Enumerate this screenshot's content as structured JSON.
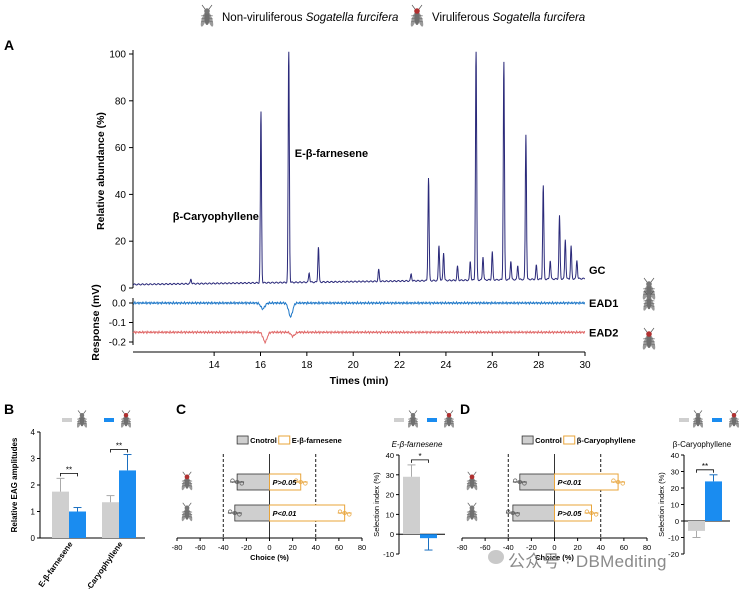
{
  "legend": {
    "nonviruliferous_prefix": "Non-viruliferous ",
    "nonviruliferous_species": "Sogatella furcifera",
    "viruliferous_prefix": "Viruliferous ",
    "viruliferous_species": "Sogatella furcifera"
  },
  "colors": {
    "gc": "#2b2a7a",
    "ead1": "#1f78c8",
    "ead2": "#e06a6a",
    "grey_bar": "#cfcfcf",
    "blue_bar": "#1a8cf0",
    "orange": "#e8a43a",
    "dark": "#555555"
  },
  "chart_data": [
    {
      "panel": "A",
      "type": "line",
      "xlabel": "Times (min)",
      "xticks": [
        14,
        16,
        18,
        20,
        22,
        24,
        26,
        28,
        30
      ],
      "xlim": [
        10.5,
        30
      ],
      "gc": {
        "ylabel": "Relative abundance (%)",
        "yticks": [
          0,
          20,
          40,
          60,
          80,
          100
        ],
        "ylim": [
          0,
          100
        ],
        "trace_label": "GC",
        "peaks": [
          {
            "x": 13.0,
            "y": 2
          },
          {
            "x": 16.02,
            "y": 73,
            "label": "β-Caryophyllene"
          },
          {
            "x": 17.22,
            "y": 100,
            "label": "E-β-farnesene"
          },
          {
            "x": 18.1,
            "y": 4
          },
          {
            "x": 18.5,
            "y": 15
          },
          {
            "x": 21.1,
            "y": 5
          },
          {
            "x": 22.5,
            "y": 3
          },
          {
            "x": 23.25,
            "y": 44
          },
          {
            "x": 23.7,
            "y": 15
          },
          {
            "x": 23.9,
            "y": 12
          },
          {
            "x": 24.5,
            "y": 6
          },
          {
            "x": 25.05,
            "y": 8
          },
          {
            "x": 25.3,
            "y": 99
          },
          {
            "x": 25.6,
            "y": 10
          },
          {
            "x": 26.0,
            "y": 12
          },
          {
            "x": 26.5,
            "y": 93
          },
          {
            "x": 26.8,
            "y": 8
          },
          {
            "x": 27.1,
            "y": 6
          },
          {
            "x": 27.45,
            "y": 62
          },
          {
            "x": 27.9,
            "y": 6
          },
          {
            "x": 28.2,
            "y": 40
          },
          {
            "x": 28.5,
            "y": 8
          },
          {
            "x": 28.9,
            "y": 27
          },
          {
            "x": 29.15,
            "y": 17
          },
          {
            "x": 29.4,
            "y": 14
          },
          {
            "x": 29.65,
            "y": 8
          }
        ]
      },
      "ead": {
        "ylabel": "Response (mV)",
        "yticks": [
          0.0,
          -0.1,
          -0.2
        ],
        "traces": [
          {
            "name": "EAD1",
            "baseline": 0.0,
            "dips": [
              {
                "x": 16.1,
                "y": -0.03
              },
              {
                "x": 17.3,
                "y": -0.07
              }
            ]
          },
          {
            "name": "EAD2",
            "baseline": -0.15,
            "dips": [
              {
                "x": 16.2,
                "y": -0.2
              },
              {
                "x": 17.4,
                "y": -0.17
              }
            ]
          }
        ]
      }
    },
    {
      "panel": "B",
      "type": "bar",
      "ylabel": "Relative EAG amplitudes",
      "ylim": [
        0,
        4
      ],
      "yticks": [
        0,
        1,
        2,
        3,
        4
      ],
      "categories": [
        "E-β-farnesene",
        "β-Caryophyllene"
      ],
      "series": [
        {
          "values": [
            1.75,
            1.35
          ],
          "errors": [
            0.5,
            0.25
          ]
        },
        {
          "values": [
            1.0,
            2.55
          ],
          "errors": [
            0.15,
            0.6
          ]
        }
      ],
      "significance": [
        "**",
        "**"
      ]
    },
    {
      "panel": "C",
      "type": "bar",
      "legend": [
        "Cnotrol",
        "E-β-farnesene"
      ],
      "xlabel": "Choice (%)",
      "xticks": [
        -80,
        -60,
        -40,
        -20,
        0,
        20,
        40,
        60,
        80
      ],
      "rows": [
        {
          "control": -28,
          "odor": 27,
          "p_label": "P>0.05"
        },
        {
          "control": -30,
          "odor": 65,
          "p_label": "P<0.01"
        }
      ],
      "inset": {
        "title": "E-β-farnesene",
        "ylabel": "Selection index (%)",
        "yticks": [
          -10,
          0,
          10,
          20,
          30,
          40
        ],
        "ylim": [
          -10,
          40
        ],
        "values": [
          29,
          -2
        ],
        "errors": [
          6,
          6
        ],
        "significance": "*"
      }
    },
    {
      "panel": "D",
      "type": "bar",
      "legend": [
        "Control",
        "β-Caryophyllene"
      ],
      "xlabel": "Choice (%)",
      "xticks": [
        -80,
        -60,
        -40,
        -20,
        0,
        20,
        40,
        60,
        80
      ],
      "rows": [
        {
          "control": -30,
          "odor": 55,
          "p_label": "P<0.01"
        },
        {
          "control": -36,
          "odor": 32,
          "p_label": "P>0.05"
        }
      ],
      "inset": {
        "title": "β-Caryophyllene",
        "ylabel": "Selection index (%)",
        "yticks": [
          -20,
          -10,
          0,
          10,
          20,
          30,
          40
        ],
        "ylim": [
          -20,
          40
        ],
        "values": [
          -6,
          24
        ],
        "errors": [
          4,
          4
        ],
        "significance": "**"
      }
    }
  ],
  "panel_labels": [
    "A",
    "B",
    "C",
    "D"
  ],
  "watermark": "公众号 · DBMediting"
}
